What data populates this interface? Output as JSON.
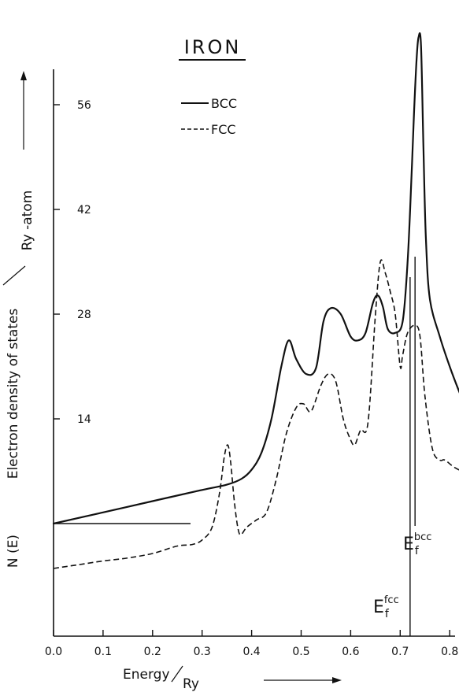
{
  "chart_data": {
    "type": "line",
    "title": "IRON",
    "xlabel": "Energy/Ry",
    "ylabel": "N(E)  Electron density of states / Ry-atom",
    "ylabel_parts": {
      "prefix": "N (E)",
      "main": "Electron density of states",
      "unit": "Ry -atom"
    },
    "xlabel_parts": {
      "main": "Energy",
      "unit": "Ry"
    },
    "xlim": [
      0.0,
      0.84
    ],
    "ylim": [
      0,
      60
    ],
    "x_ticks": [
      "0.0",
      "0.1",
      "0.2",
      "0.3",
      "0.4",
      "0.5",
      "0.6",
      "0.7",
      "0.8"
    ],
    "y_ticks": [
      "14",
      "28",
      "42",
      "56"
    ],
    "legend": {
      "position": "top-center",
      "entries": [
        "BCC",
        "FCC"
      ]
    },
    "series": [
      {
        "name": "BCC",
        "style": "solid",
        "x": [
          0.0,
          0.1,
          0.2,
          0.3,
          0.35,
          0.38,
          0.4,
          0.42,
          0.44,
          0.46,
          0.475,
          0.49,
          0.51,
          0.53,
          0.545,
          0.56,
          0.58,
          0.6,
          0.615,
          0.63,
          0.645,
          0.655,
          0.665,
          0.675,
          0.69,
          0.705,
          0.715,
          0.722,
          0.728,
          0.733,
          0.737,
          0.742,
          0.747,
          0.752,
          0.76,
          0.78,
          0.8,
          0.82,
          0.83
        ],
        "y": [
          0.0,
          1.5,
          3.0,
          4.5,
          5.2,
          6.0,
          7.2,
          9.5,
          14.0,
          21.0,
          24.5,
          22.0,
          20.0,
          20.8,
          27.0,
          28.8,
          28.0,
          25.0,
          24.5,
          25.5,
          29.5,
          30.5,
          29.0,
          26.0,
          25.5,
          27.0,
          35.0,
          45.0,
          55.0,
          62.0,
          65.0,
          64.0,
          50.0,
          38.0,
          30.0,
          25.0,
          21.0,
          17.5,
          16.0
        ]
      },
      {
        "name": "FCC",
        "style": "dashed",
        "x": [
          0.0,
          0.05,
          0.1,
          0.15,
          0.2,
          0.25,
          0.28,
          0.3,
          0.32,
          0.335,
          0.345,
          0.352,
          0.358,
          0.365,
          0.372,
          0.378,
          0.39,
          0.41,
          0.43,
          0.45,
          0.47,
          0.49,
          0.505,
          0.52,
          0.54,
          0.555,
          0.57,
          0.585,
          0.598,
          0.608,
          0.62,
          0.635,
          0.65,
          0.66,
          0.67,
          0.68,
          0.69,
          0.7,
          0.705,
          0.715,
          0.73,
          0.74,
          0.75,
          0.765,
          0.78,
          0.79,
          0.81,
          0.84
        ],
        "y": [
          -6.0,
          -5.5,
          -5.0,
          -4.6,
          -4.0,
          -3.0,
          -2.8,
          -2.2,
          -0.5,
          4.0,
          9.0,
          10.5,
          8.0,
          3.0,
          -0.5,
          -1.5,
          -0.5,
          0.5,
          1.5,
          6.0,
          12.0,
          15.5,
          16.0,
          15.0,
          18.5,
          20.0,
          19.0,
          14.0,
          11.5,
          10.5,
          12.5,
          13.5,
          28.0,
          35.0,
          33.5,
          31.0,
          28.0,
          21.0,
          22.5,
          25.5,
          26.5,
          25.0,
          17.0,
          10.0,
          8.5,
          8.5,
          7.5,
          6.5
        ]
      }
    ],
    "fermi_levels": [
      {
        "label_base": "E",
        "label_sub": "f",
        "label_sup": "fcc",
        "x": 0.72
      },
      {
        "label_base": "E",
        "label_sub": "f",
        "label_sup": "bcc",
        "x": 0.73
      }
    ]
  }
}
